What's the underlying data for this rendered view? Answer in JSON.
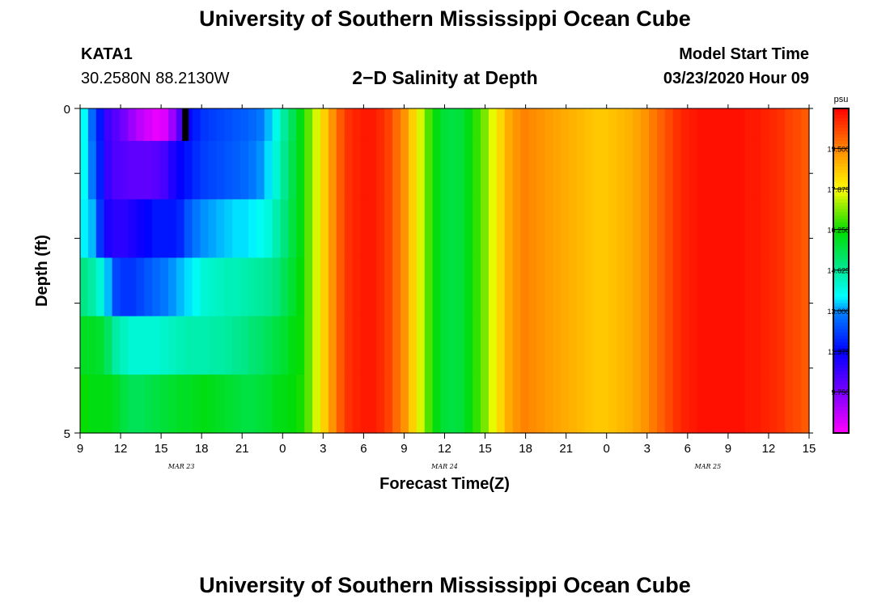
{
  "header": {
    "title": "University of Southern Mississippi Ocean Cube",
    "station_id": "KATA1",
    "station_coords": "30.2580N 88.2130W",
    "chart_title": "2−D Salinity at Depth",
    "model_start_label": "Model Start Time",
    "model_start_value": "03/23/2020 Hour 09"
  },
  "footer": {
    "title": "University of Southern Mississippi Ocean Cube"
  },
  "chart_data": {
    "type": "heatmap",
    "title": "2−D Salinity at Depth",
    "xlabel": "Forecast Time(Z)",
    "ylabel": "Depth (ft)",
    "x_ticks": [
      {
        "hours": 0,
        "label": "9"
      },
      {
        "hours": 3,
        "label": "12"
      },
      {
        "hours": 6,
        "label": "15"
      },
      {
        "hours": 9,
        "label": "18"
      },
      {
        "hours": 12,
        "label": "21"
      },
      {
        "hours": 15,
        "label": "0"
      },
      {
        "hours": 18,
        "label": "3"
      },
      {
        "hours": 21,
        "label": "6"
      },
      {
        "hours": 24,
        "label": "9"
      },
      {
        "hours": 27,
        "label": "12"
      },
      {
        "hours": 30,
        "label": "15"
      },
      {
        "hours": 33,
        "label": "18"
      },
      {
        "hours": 36,
        "label": "21"
      },
      {
        "hours": 39,
        "label": "0"
      },
      {
        "hours": 42,
        "label": "3"
      },
      {
        "hours": 45,
        "label": "6"
      },
      {
        "hours": 48,
        "label": "9"
      },
      {
        "hours": 51,
        "label": "12"
      },
      {
        "hours": 54,
        "label": "15"
      }
    ],
    "date_labels": [
      {
        "hours": 7.5,
        "label": "MAR 23"
      },
      {
        "hours": 27,
        "label": "MAR 24"
      },
      {
        "hours": 46.5,
        "label": "MAR 25"
      }
    ],
    "xlim": [
      0,
      54
    ],
    "y_ticks": [
      {
        "value": 0,
        "label": "0"
      },
      {
        "value": 5,
        "label": "5"
      }
    ],
    "ylim": [
      0,
      5
    ],
    "depth_layers": 5,
    "colorbar": {
      "unit": "psu",
      "min": 8.1,
      "max": 21.1,
      "tick_values": [
        9.75,
        11.375,
        13.0,
        14.625,
        16.25,
        17.875,
        19.5
      ],
      "tick_labels": [
        "9.750",
        "11.375",
        "13.000",
        "14.625",
        "16.250",
        "17.875",
        "19.500"
      ]
    },
    "columns": [
      [
        13.6,
        13.6,
        13.5,
        14.8,
        15.8,
        16.2
      ],
      [
        12.6,
        12.8,
        13.2,
        14.5,
        15.8,
        16.0
      ],
      [
        11.6,
        11.7,
        12.0,
        14.0,
        15.7,
        16.0
      ],
      [
        10.5,
        10.6,
        11.0,
        13.2,
        15.2,
        16.0
      ],
      [
        10.2,
        10.3,
        10.8,
        12.2,
        14.5,
        15.8
      ],
      [
        9.8,
        10.2,
        10.8,
        12.0,
        14.2,
        15.5
      ],
      [
        9.3,
        10.1,
        11.0,
        12.0,
        14.0,
        15.3
      ],
      [
        8.9,
        10.1,
        11.2,
        12.2,
        14.0,
        15.3
      ],
      [
        8.6,
        10.1,
        11.4,
        12.4,
        14.0,
        15.4
      ],
      [
        8.4,
        10.2,
        11.6,
        12.6,
        14.0,
        15.5
      ],
      [
        8.5,
        10.4,
        11.6,
        12.8,
        14.1,
        15.6
      ],
      [
        9.3,
        10.9,
        11.6,
        13.0,
        14.2,
        15.7
      ],
      [
        10.3,
        11.3,
        11.8,
        13.2,
        14.3,
        15.8
      ],
      [
        11.2,
        11.6,
        12.4,
        13.4,
        14.4,
        15.8
      ],
      [
        11.7,
        11.9,
        12.8,
        13.7,
        14.4,
        15.9
      ],
      [
        12.0,
        12.1,
        13.0,
        14.0,
        14.4,
        16.0
      ],
      [
        12.1,
        12.2,
        13.1,
        14.1,
        14.5,
        15.9
      ],
      [
        12.2,
        12.3,
        13.2,
        14.2,
        14.5,
        15.8
      ],
      [
        12.3,
        12.4,
        13.3,
        14.3,
        14.6,
        15.7
      ],
      [
        12.4,
        12.5,
        13.4,
        14.3,
        14.7,
        15.6
      ],
      [
        12.5,
        12.6,
        13.4,
        14.4,
        14.8,
        15.5
      ],
      [
        12.6,
        12.8,
        13.5,
        14.5,
        15.0,
        15.5
      ],
      [
        12.8,
        13.0,
        13.7,
        14.6,
        15.1,
        15.6
      ],
      [
        13.2,
        13.4,
        13.9,
        14.7,
        15.3,
        15.7
      ],
      [
        13.8,
        14.0,
        14.4,
        14.9,
        15.5,
        15.9
      ],
      [
        14.6,
        14.7,
        14.9,
        15.3,
        15.7,
        16.0
      ],
      [
        15.3,
        15.4,
        15.5,
        15.7,
        16.0,
        16.1
      ],
      [
        16.0,
        16.0,
        16.0,
        16.1,
        16.2,
        16.3
      ],
      [
        16.8,
        16.8,
        16.8,
        16.8,
        16.8,
        16.8
      ],
      [
        17.6,
        17.6,
        17.6,
        17.6,
        17.6,
        17.6
      ],
      [
        18.5,
        18.5,
        18.5,
        18.5,
        18.5,
        18.5
      ],
      [
        19.3,
        19.3,
        19.3,
        19.3,
        19.3,
        19.3
      ],
      [
        20.0,
        20.0,
        20.0,
        20.0,
        20.0,
        20.0
      ],
      [
        20.5,
        20.5,
        20.5,
        20.5,
        20.5,
        20.5
      ],
      [
        20.7,
        20.7,
        20.7,
        20.7,
        20.7,
        20.7
      ],
      [
        20.8,
        20.8,
        20.8,
        20.8,
        20.8,
        20.8
      ],
      [
        20.8,
        20.8,
        20.8,
        20.8,
        20.8,
        20.8
      ],
      [
        20.6,
        20.6,
        20.6,
        20.6,
        20.6,
        20.6
      ],
      [
        20.3,
        20.3,
        20.3,
        20.3,
        20.3,
        20.3
      ],
      [
        19.8,
        19.8,
        19.8,
        19.8,
        19.8,
        19.8
      ],
      [
        19.3,
        19.3,
        19.3,
        19.3,
        19.3,
        19.3
      ],
      [
        18.5,
        18.5,
        18.5,
        18.5,
        18.5,
        18.5
      ],
      [
        17.6,
        17.6,
        17.6,
        17.6,
        17.6,
        17.6
      ],
      [
        16.7,
        16.7,
        16.7,
        16.7,
        16.7,
        16.7
      ],
      [
        16.0,
        16.0,
        16.0,
        16.0,
        16.0,
        16.0
      ],
      [
        15.6,
        15.6,
        15.6,
        15.6,
        15.6,
        15.6
      ],
      [
        15.5,
        15.5,
        15.5,
        15.5,
        15.5,
        15.5
      ],
      [
        15.6,
        15.6,
        15.6,
        15.6,
        15.6,
        15.6
      ],
      [
        16.0,
        16.0,
        16.0,
        16.0,
        16.0,
        16.0
      ],
      [
        16.5,
        16.5,
        16.5,
        16.5,
        16.5,
        16.5
      ],
      [
        17.0,
        17.0,
        17.0,
        17.0,
        17.0,
        17.0
      ],
      [
        17.7,
        17.7,
        17.7,
        17.7,
        17.7,
        17.7
      ],
      [
        18.4,
        18.4,
        18.4,
        18.4,
        18.4,
        18.4
      ],
      [
        19.0,
        19.0,
        19.0,
        19.0,
        19.0,
        19.0
      ],
      [
        19.3,
        19.3,
        19.3,
        19.3,
        19.3,
        19.3
      ],
      [
        19.5,
        19.5,
        19.5,
        19.5,
        19.5,
        19.5
      ],
      [
        19.4,
        19.4,
        19.4,
        19.4,
        19.4,
        19.4
      ],
      [
        19.3,
        19.3,
        19.3,
        19.3,
        19.3,
        19.3
      ],
      [
        19.2,
        19.2,
        19.2,
        19.2,
        19.2,
        19.2
      ],
      [
        19.1,
        19.1,
        19.1,
        19.1,
        19.1,
        19.1
      ],
      [
        19.0,
        19.0,
        19.0,
        19.0,
        19.0,
        19.0
      ],
      [
        18.9,
        18.9,
        18.9,
        18.9,
        18.9,
        18.9
      ],
      [
        18.8,
        18.8,
        18.8,
        18.8,
        18.8,
        18.8
      ],
      [
        18.7,
        18.7,
        18.7,
        18.7,
        18.7,
        18.7
      ],
      [
        18.6,
        18.6,
        18.6,
        18.6,
        18.6,
        18.6
      ],
      [
        18.6,
        18.6,
        18.6,
        18.6,
        18.6,
        18.6
      ],
      [
        18.7,
        18.7,
        18.7,
        18.7,
        18.7,
        18.7
      ],
      [
        18.8,
        18.8,
        18.8,
        18.8,
        18.8,
        18.8
      ],
      [
        18.9,
        18.9,
        18.9,
        18.9,
        18.9,
        18.9
      ],
      [
        19.1,
        19.1,
        19.1,
        19.1,
        19.1,
        19.1
      ],
      [
        19.3,
        19.3,
        19.3,
        19.3,
        19.3,
        19.3
      ],
      [
        19.6,
        19.6,
        19.6,
        19.6,
        19.6,
        19.6
      ],
      [
        19.9,
        19.9,
        19.9,
        19.9,
        19.9,
        19.9
      ],
      [
        20.2,
        20.2,
        20.2,
        20.2,
        20.2,
        20.2
      ],
      [
        20.5,
        20.5,
        20.5,
        20.5,
        20.5,
        20.5
      ],
      [
        20.7,
        20.7,
        20.7,
        20.7,
        20.7,
        20.7
      ],
      [
        20.8,
        20.8,
        20.8,
        20.8,
        20.8,
        20.8
      ],
      [
        20.9,
        20.9,
        20.9,
        20.9,
        20.9,
        20.9
      ],
      [
        20.9,
        20.9,
        20.9,
        20.9,
        20.9,
        20.9
      ],
      [
        20.9,
        20.9,
        20.9,
        20.9,
        20.9,
        20.9
      ],
      [
        20.9,
        20.9,
        20.9,
        20.9,
        20.9,
        20.9
      ],
      [
        20.9,
        20.9,
        20.9,
        20.9,
        20.9,
        20.9
      ],
      [
        20.9,
        20.9,
        20.9,
        20.9,
        20.9,
        20.9
      ],
      [
        20.8,
        20.8,
        20.8,
        20.8,
        20.8,
        20.8
      ],
      [
        20.8,
        20.8,
        20.8,
        20.8,
        20.8,
        20.8
      ],
      [
        20.7,
        20.7,
        20.7,
        20.7,
        20.7,
        20.7
      ],
      [
        20.6,
        20.6,
        20.6,
        20.6,
        20.6,
        20.6
      ],
      [
        20.5,
        20.5,
        20.5,
        20.5,
        20.5,
        20.5
      ],
      [
        20.3,
        20.3,
        20.3,
        20.3,
        20.3,
        20.3
      ],
      [
        20.2,
        20.2,
        20.2,
        20.2,
        20.2,
        20.2
      ],
      [
        20.0,
        20.0,
        20.0,
        20.0,
        20.0,
        20.0
      ]
    ],
    "marker": {
      "hours": 7.8,
      "depth_from": 0,
      "depth_to": 0.5
    }
  }
}
